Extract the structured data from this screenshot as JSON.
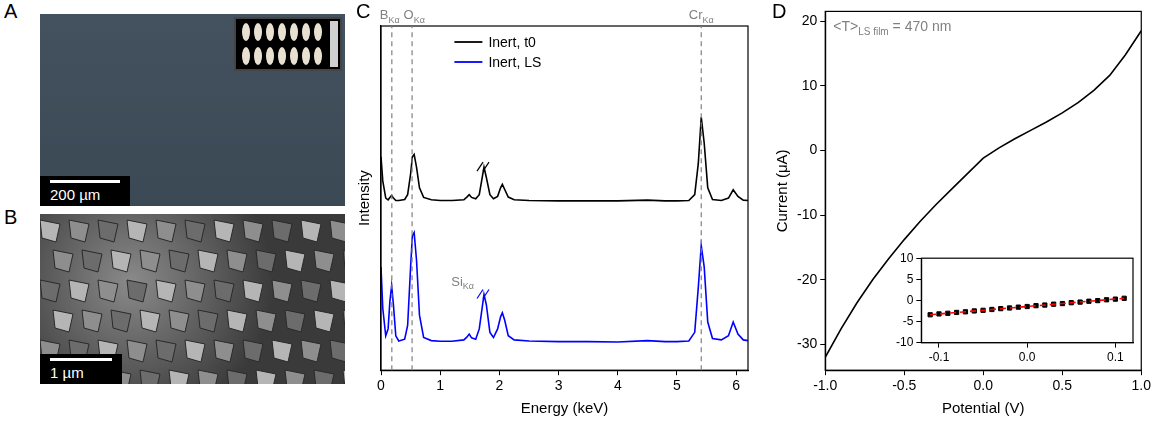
{
  "panels": [
    {
      "label": "A",
      "type": "image",
      "scale_bar": "200 µm"
    },
    {
      "label": "B",
      "type": "image",
      "scale_bar": "1 µm"
    }
  ],
  "chart_data": [
    {
      "panel": "C",
      "type": "line",
      "x_label": "Energy (keV)",
      "y_label": "Intensity",
      "xlim": [
        0,
        6.2
      ],
      "xticks": [
        0,
        1,
        2,
        3,
        4,
        5,
        6
      ],
      "ylim": [
        0,
        100
      ],
      "tick_labels": "x",
      "grid": false,
      "legend": "upper center",
      "x": [
        0,
        0.03,
        0.08,
        0.12,
        0.15,
        0.18,
        0.21,
        0.25,
        0.3,
        0.4,
        0.45,
        0.5,
        0.53,
        0.56,
        0.6,
        0.65,
        0.72,
        0.85,
        1.0,
        1.2,
        1.4,
        1.45,
        1.49,
        1.53,
        1.6,
        1.66,
        1.7,
        1.74,
        1.78,
        1.84,
        1.9,
        1.97,
        2.02,
        2.05,
        2.09,
        2.15,
        2.25,
        2.5,
        3.0,
        3.5,
        4.0,
        4.5,
        4.8,
        5.0,
        5.2,
        5.3,
        5.36,
        5.41,
        5.46,
        5.52,
        5.6,
        5.75,
        5.87,
        5.95,
        6.03,
        6.12,
        6.2
      ],
      "series": [
        {
          "name": "Inert, t0",
          "color": "#000000",
          "values": [
            62,
            55,
            50,
            49.5,
            50.2,
            50.8,
            50,
            49.3,
            49.3,
            49.6,
            51,
            57,
            62,
            62.7,
            59,
            53,
            50.2,
            49.5,
            49.3,
            49.3,
            49.5,
            50.3,
            51,
            50.2,
            49.8,
            51,
            55,
            59,
            56,
            51,
            49.8,
            50.5,
            53,
            54,
            52.5,
            50.3,
            49.5,
            49.3,
            49.2,
            49.2,
            49.2,
            49.4,
            49.2,
            49.2,
            49.3,
            51,
            60,
            73.5,
            66,
            53,
            49.6,
            49.3,
            50,
            52.4,
            50.5,
            49.4,
            49.3
          ]
        },
        {
          "name": "Inert, LS",
          "color": "#0000ff",
          "values": [
            30,
            18,
            10,
            12,
            20,
            24.6,
            19,
            10,
            8.5,
            9,
            13,
            30,
            39,
            40,
            32,
            16,
            9.5,
            8.6,
            8.4,
            8.4,
            8.8,
            9.6,
            10.5,
            9.4,
            9,
            12,
            17,
            22,
            19,
            11,
            9.5,
            12,
            15.5,
            16.7,
            14.5,
            10,
            8.8,
            8.5,
            8.3,
            8.3,
            8.2,
            8.6,
            8.3,
            8.3,
            8.5,
            11,
            24,
            36.2,
            30,
            14,
            9.2,
            8.8,
            10,
            14,
            10.5,
            8.8,
            8.6
          ]
        }
      ],
      "annotations": [
        {
          "text": "B",
          "subscript": "Kα",
          "x": 0.183,
          "line_style": "dashed"
        },
        {
          "text": "O",
          "subscript": "Kα",
          "x": 0.525,
          "line_style": "dashed"
        },
        {
          "text": "Cr",
          "subscript": "Kα",
          "x": 5.41,
          "line_style": "dashed"
        },
        {
          "text": "Si",
          "subscript": "Kα",
          "x": 1.74,
          "y": 26
        }
      ]
    },
    {
      "panel": "D",
      "type": "line",
      "x_label": "Potential (V)",
      "y_label": "Current (μA)",
      "xlim": [
        -1,
        1
      ],
      "xticks": [
        {
          "value": -1,
          "label": "-1.0"
        },
        {
          "value": -0.5,
          "label": "-0.5"
        },
        {
          "value": 0,
          "label": "0.0"
        },
        {
          "value": 0.5,
          "label": "0.5"
        },
        {
          "value": 1,
          "label": "1.0"
        }
      ],
      "ylim": [
        -34,
        21.5
      ],
      "yticks": [
        -30,
        -20,
        -10,
        0,
        10,
        20
      ],
      "grid": false,
      "x": [
        -1,
        -0.9,
        -0.8,
        -0.7,
        -0.6,
        -0.5,
        -0.4,
        -0.3,
        -0.2,
        -0.1,
        0,
        0.1,
        0.2,
        0.3,
        0.4,
        0.5,
        0.6,
        0.7,
        0.8,
        0.9,
        1
      ],
      "series": [
        {
          "color": "#000000",
          "values": [
            -32,
            -27.6,
            -23.6,
            -20,
            -16.8,
            -13.8,
            -11,
            -8.4,
            -6,
            -3.6,
            -1.2,
            0.4,
            1.8,
            3.1,
            4.4,
            5.8,
            7.4,
            9.3,
            11.6,
            14.8,
            18.5
          ]
        }
      ],
      "annotations": [
        {
          "text": "<T>",
          "subscript": "LS film",
          "text_after": " = 470 nm"
        }
      ],
      "inset": {
        "type": "scatter",
        "xlim": [
          -0.12,
          0.12
        ],
        "xticks": [
          {
            "value": -0.1,
            "label": "-0.1"
          },
          {
            "value": 0,
            "label": "0.0"
          },
          {
            "value": 0.1,
            "label": "0.1"
          }
        ],
        "ylim": [
          -10,
          10
        ],
        "yticks": [
          -10,
          -5,
          0,
          5,
          10
        ],
        "grid": false,
        "series": [
          {
            "type": "scatter",
            "marker": "square",
            "color": "#000000",
            "x": [
              -0.11,
              -0.1,
              -0.09,
              -0.08,
              -0.07,
              -0.06,
              -0.05,
              -0.04,
              -0.03,
              -0.02,
              -0.01,
              0,
              0.01,
              0.02,
              0.03,
              0.04,
              0.05,
              0.06,
              0.07,
              0.08,
              0.09,
              0.1,
              0.11
            ],
            "values": [
              -3.4,
              -3.2,
              -3.05,
              -2.85,
              -2.7,
              -2.5,
              -2.35,
              -2.15,
              -1.95,
              -1.8,
              -1.6,
              -1.45,
              -1.25,
              -1.1,
              -0.9,
              -0.75,
              -0.55,
              -0.4,
              -0.2,
              -0.05,
              0.15,
              0.3,
              0.5
            ]
          },
          {
            "type": "line",
            "line_style": "dashed",
            "color": "#ff0000",
            "x": [
              -0.11,
              0.11
            ],
            "values": [
              -3.4,
              0.5
            ]
          }
        ]
      }
    }
  ]
}
